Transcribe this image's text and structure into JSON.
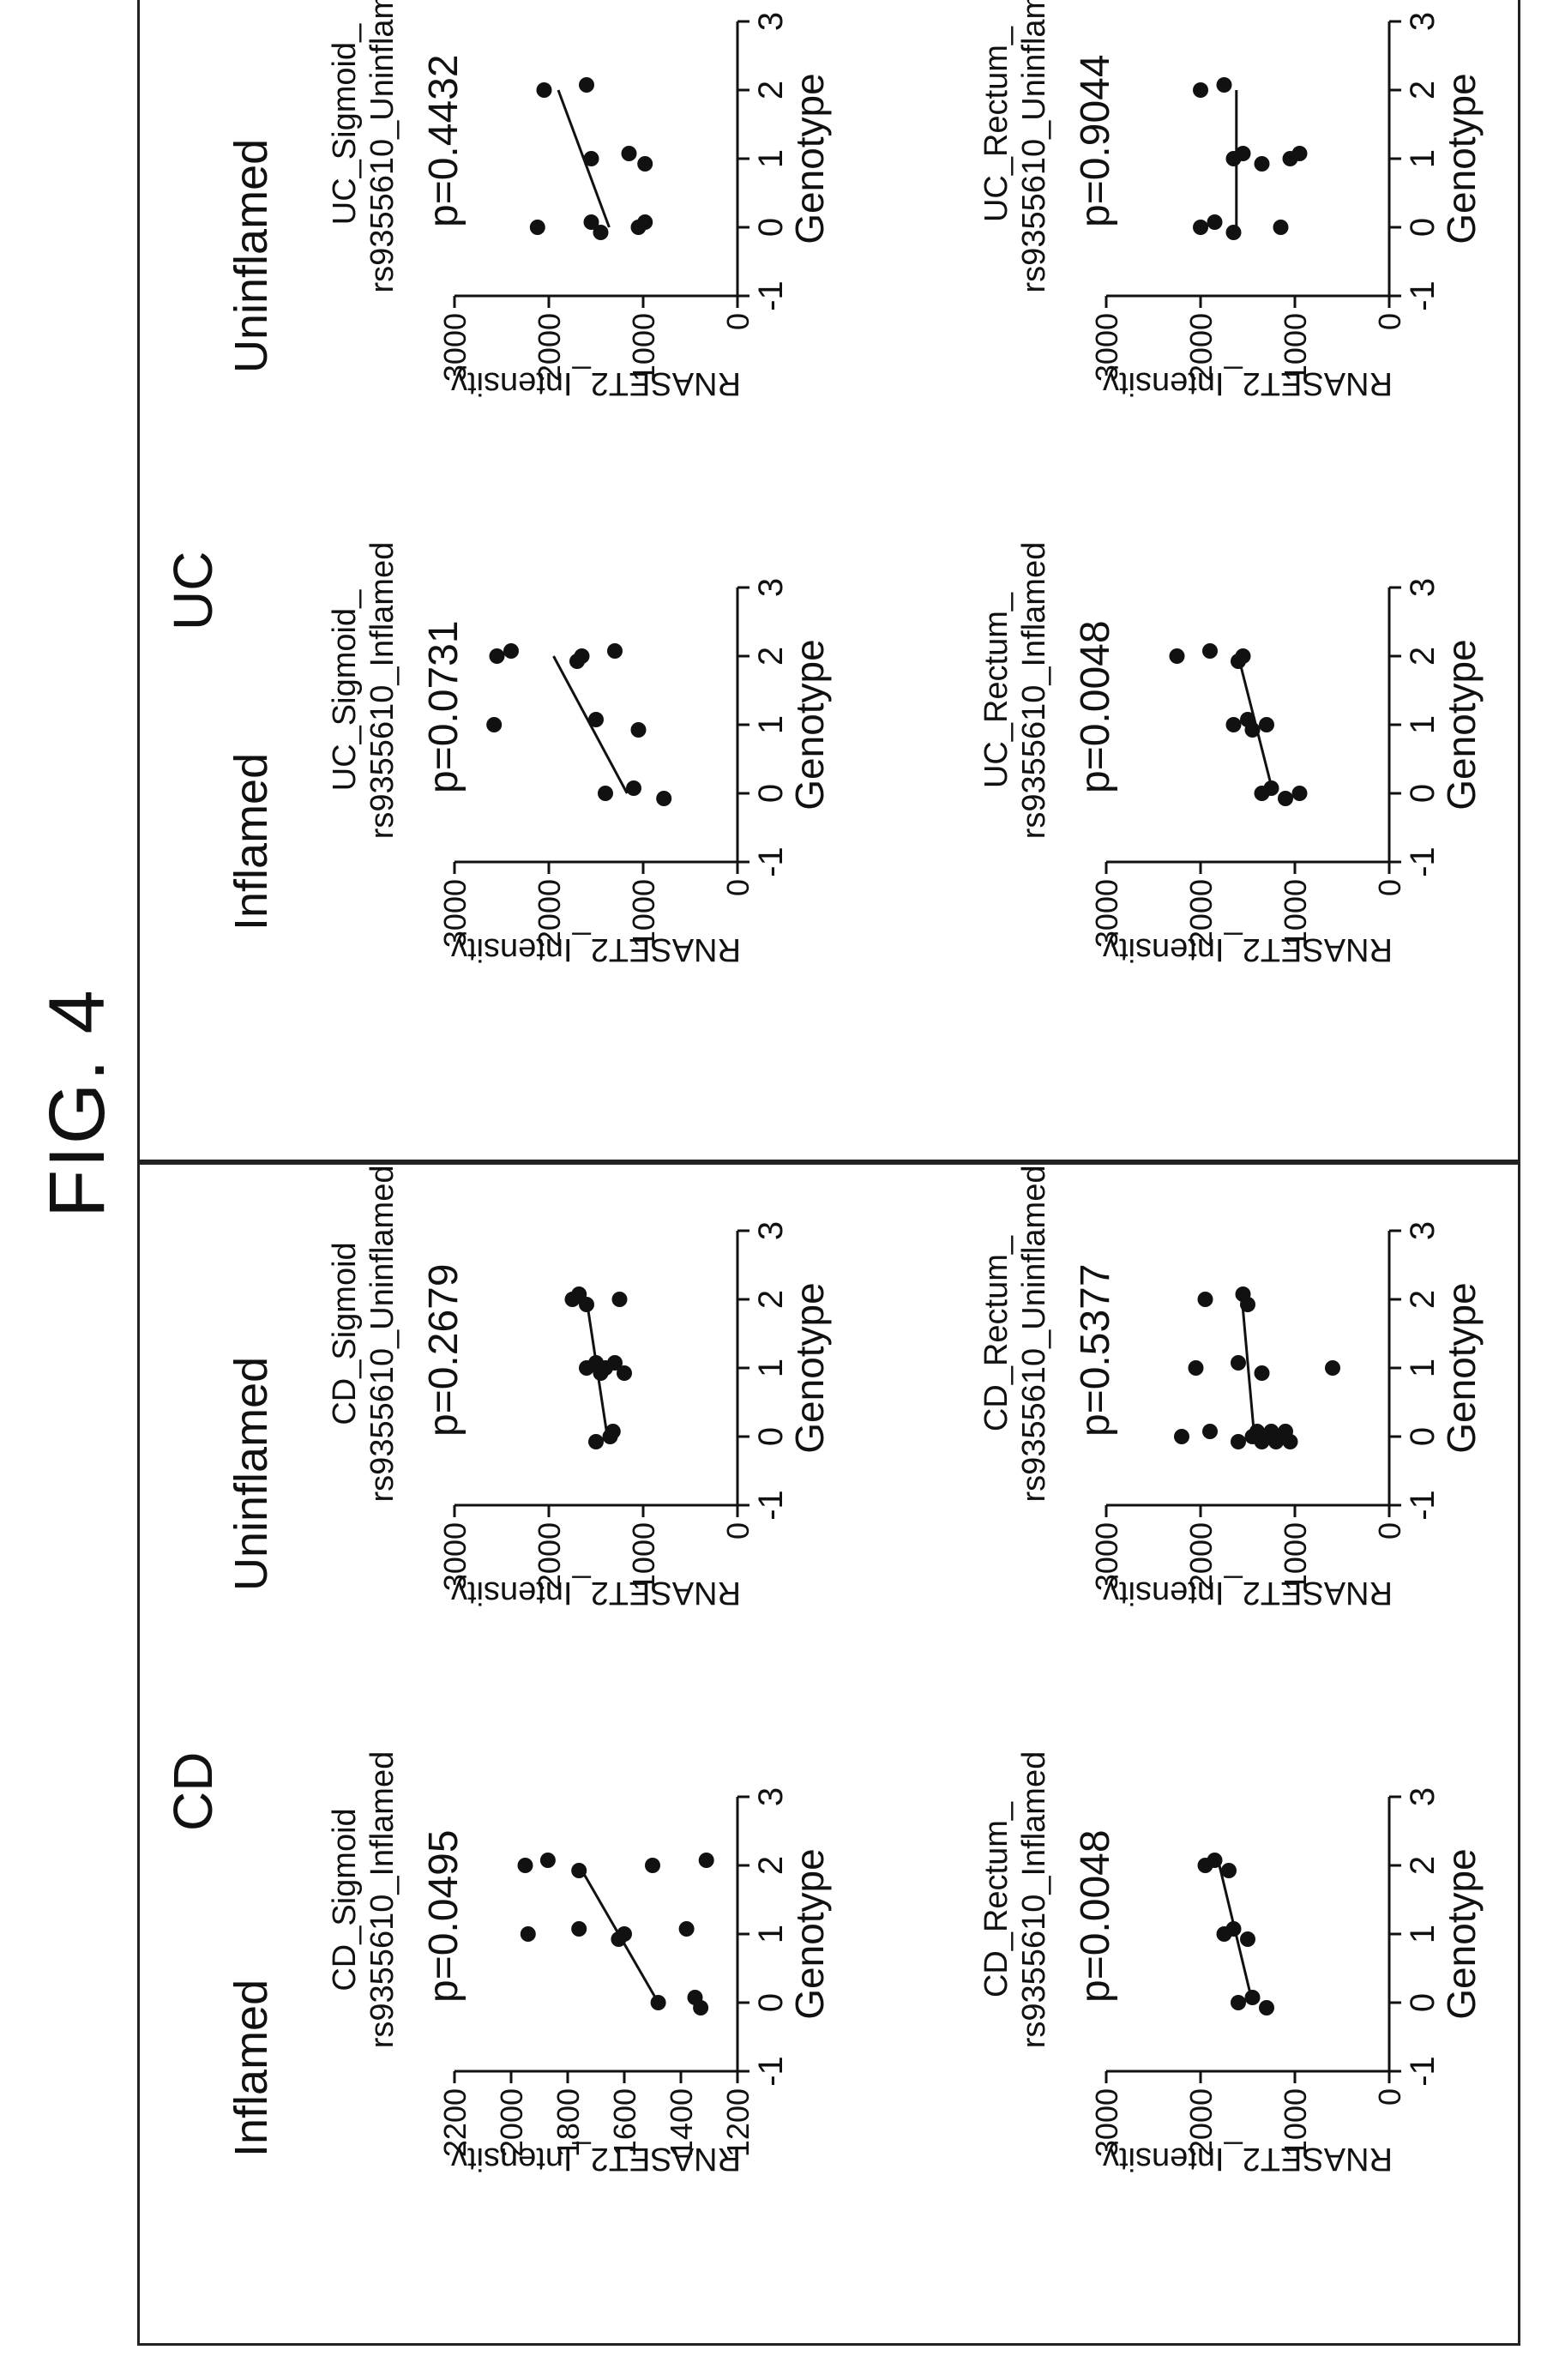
{
  "figure_title": "FIG. 4",
  "groups": [
    "CD",
    "UC"
  ],
  "conditions": [
    "Inflamed",
    "Uninflamed"
  ],
  "chart_data": [
    {
      "type": "scatter",
      "title_lines": [
        "CD_Sigmoid",
        "rs9355610_Inflamed"
      ],
      "p_value": "p=0.0495",
      "xlabel": "Genotype",
      "ylabel": "RNASET2_Intensity",
      "xlim": [
        -1,
        3
      ],
      "xticks": [
        "-1",
        "0",
        "1",
        "2",
        "3"
      ],
      "ylim": [
        1200,
        2200
      ],
      "yticks": [
        "1200",
        "1400",
        "1600",
        "1800",
        "2000",
        "2200"
      ],
      "points": [
        [
          0,
          1480
        ],
        [
          0,
          1350
        ],
        [
          0,
          1330
        ],
        [
          1,
          1940
        ],
        [
          1,
          1760
        ],
        [
          1,
          1620
        ],
        [
          1,
          1600
        ],
        [
          1,
          1380
        ],
        [
          2,
          1950
        ],
        [
          2,
          1870
        ],
        [
          2,
          1760
        ],
        [
          2,
          1500
        ],
        [
          2,
          1310
        ]
      ],
      "fit_line": [
        [
          0,
          1480
        ],
        [
          2,
          1760
        ]
      ]
    },
    {
      "type": "scatter",
      "title_lines": [
        "CD_Sigmoid",
        "rs9355610_Uninflamed"
      ],
      "p_value": "p=0.2679",
      "xlabel": "Genotype",
      "ylabel": "RNASET2_Intensity",
      "xlim": [
        -1,
        3
      ],
      "xticks": [
        "-1",
        "0",
        "1",
        "2",
        "3"
      ],
      "ylim": [
        0,
        3000
      ],
      "yticks": [
        "0",
        "1000",
        "2000",
        "3000"
      ],
      "points": [
        [
          0,
          1350
        ],
        [
          0,
          1320
        ],
        [
          0,
          1500
        ],
        [
          1,
          1600
        ],
        [
          1,
          1500
        ],
        [
          1,
          1450
        ],
        [
          1,
          1400
        ],
        [
          1,
          1300
        ],
        [
          1,
          1200
        ],
        [
          2,
          1750
        ],
        [
          2,
          1680
        ],
        [
          2,
          1600
        ],
        [
          2,
          1250
        ]
      ],
      "fit_line": [
        [
          0,
          1380
        ],
        [
          2,
          1600
        ]
      ]
    },
    {
      "type": "scatter",
      "title_lines": [
        "UC_Sigmoid_",
        "rs9355610_Inflamed"
      ],
      "p_value": "p=0.0731",
      "xlabel": "Genotype",
      "ylabel": "RNASET2_Intensity",
      "xlim": [
        -1,
        3
      ],
      "xticks": [
        "-1",
        "0",
        "1",
        "2",
        "3"
      ],
      "ylim": [
        0,
        3000
      ],
      "yticks": [
        "0",
        "1000",
        "2000",
        "3000"
      ],
      "points": [
        [
          0,
          1400
        ],
        [
          0,
          1100
        ],
        [
          0,
          780
        ],
        [
          1,
          2580
        ],
        [
          1,
          1500
        ],
        [
          1,
          1050
        ],
        [
          2,
          2550
        ],
        [
          2,
          2400
        ],
        [
          2,
          1700
        ],
        [
          2,
          1650
        ],
        [
          2,
          1300
        ]
      ],
      "fit_line": [
        [
          0,
          1170
        ],
        [
          2,
          1950
        ]
      ]
    },
    {
      "type": "scatter",
      "title_lines": [
        "UC_Sigmoid_",
        "rs9355610_Uninflamed"
      ],
      "p_value": "p=0.4432",
      "xlabel": "Genotype",
      "ylabel": "RNASET2_Intensity",
      "xlim": [
        -1,
        3
      ],
      "xticks": [
        "-1",
        "0",
        "1",
        "2",
        "3"
      ],
      "ylim": [
        0,
        3000
      ],
      "yticks": [
        "0",
        "1000",
        "2000",
        "3000"
      ],
      "points": [
        [
          0,
          2120
        ],
        [
          0,
          1550
        ],
        [
          0,
          1450
        ],
        [
          0,
          1050
        ],
        [
          0,
          980
        ],
        [
          1,
          1550
        ],
        [
          1,
          1150
        ],
        [
          1,
          980
        ],
        [
          2,
          2050
        ],
        [
          2,
          1600
        ]
      ],
      "fit_line": [
        [
          0,
          1360
        ],
        [
          2,
          1900
        ]
      ]
    },
    {
      "type": "scatter",
      "title_lines": [
        "CD_Rectum_",
        "rs9355610_Inflamed"
      ],
      "p_value": "p=0.0048",
      "xlabel": "Genotype",
      "ylabel": "RNASET2_Intensity",
      "xlim": [
        -1,
        3
      ],
      "xticks": [
        "-1",
        "0",
        "1",
        "2",
        "3"
      ],
      "ylim": [
        0,
        3000
      ],
      "yticks": [
        "0",
        "1000",
        "2000",
        "3000"
      ],
      "points": [
        [
          0,
          1600
        ],
        [
          0,
          1450
        ],
        [
          0,
          1300
        ],
        [
          1,
          1750
        ],
        [
          1,
          1650
        ],
        [
          1,
          1500
        ],
        [
          2,
          1950
        ],
        [
          2,
          1850
        ],
        [
          2,
          1700
        ]
      ],
      "fit_line": [
        [
          0,
          1450
        ],
        [
          2,
          1800
        ]
      ]
    },
    {
      "type": "scatter",
      "title_lines": [
        "CD_Rectum_",
        "rs9355610_Uninflamed"
      ],
      "p_value": "p=0.5377",
      "xlabel": "Genotype",
      "ylabel": "RNASET2_Intensity",
      "xlim": [
        -1,
        3
      ],
      "xticks": [
        "-1",
        "0",
        "1",
        "2",
        "3"
      ],
      "ylim": [
        0,
        3000
      ],
      "yticks": [
        "0",
        "1000",
        "2000",
        "3000"
      ],
      "points": [
        [
          0,
          2200
        ],
        [
          0,
          1900
        ],
        [
          0,
          1600
        ],
        [
          0,
          1450
        ],
        [
          0,
          1400
        ],
        [
          0,
          1350
        ],
        [
          0,
          1300
        ],
        [
          0,
          1250
        ],
        [
          0,
          1200
        ],
        [
          0,
          1150
        ],
        [
          0,
          1100
        ],
        [
          0,
          1050
        ],
        [
          1,
          2050
        ],
        [
          1,
          1600
        ],
        [
          1,
          1350
        ],
        [
          1,
          600
        ],
        [
          2,
          1950
        ],
        [
          2,
          1550
        ],
        [
          2,
          1500
        ]
      ],
      "fit_line": [
        [
          0,
          1430
        ],
        [
          2,
          1560
        ]
      ]
    },
    {
      "type": "scatter",
      "title_lines": [
        "UC_Rectum_",
        "rs9355610_Inflamed"
      ],
      "p_value": "p=0.0048",
      "xlabel": "Genotype",
      "ylabel": "RNASET2_Intensity",
      "xlim": [
        -1,
        3
      ],
      "xticks": [
        "-1",
        "0",
        "1",
        "2",
        "3"
      ],
      "ylim": [
        0,
        3000
      ],
      "yticks": [
        "0",
        "1000",
        "2000",
        "3000"
      ],
      "points": [
        [
          0,
          1350
        ],
        [
          0,
          1250
        ],
        [
          0,
          1100
        ],
        [
          0,
          950
        ],
        [
          1,
          1650
        ],
        [
          1,
          1500
        ],
        [
          1,
          1450
        ],
        [
          1,
          1300
        ],
        [
          2,
          2250
        ],
        [
          2,
          1900
        ],
        [
          2,
          1600
        ],
        [
          2,
          1550
        ]
      ],
      "fit_line": [
        [
          0,
          1230
        ],
        [
          2,
          1600
        ]
      ]
    },
    {
      "type": "scatter",
      "title_lines": [
        "UC_Rectum_",
        "rs9355610_Uninflamed"
      ],
      "p_value": "p=0.9044",
      "xlabel": "Genotype",
      "ylabel": "RNASET2_Intensity",
      "xlim": [
        -1,
        3
      ],
      "xticks": [
        "-1",
        "0",
        "1",
        "2",
        "3"
      ],
      "ylim": [
        0,
        3000
      ],
      "yticks": [
        "0",
        "1000",
        "2000",
        "3000"
      ],
      "points": [
        [
          0,
          2000
        ],
        [
          0,
          1850
        ],
        [
          0,
          1650
        ],
        [
          0,
          1150
        ],
        [
          1,
          1650
        ],
        [
          1,
          1550
        ],
        [
          1,
          1350
        ],
        [
          1,
          1050
        ],
        [
          1,
          950
        ],
        [
          2,
          2000
        ],
        [
          2,
          1750
        ]
      ],
      "fit_line": [
        [
          0,
          1620
        ],
        [
          2,
          1620
        ]
      ]
    }
  ]
}
